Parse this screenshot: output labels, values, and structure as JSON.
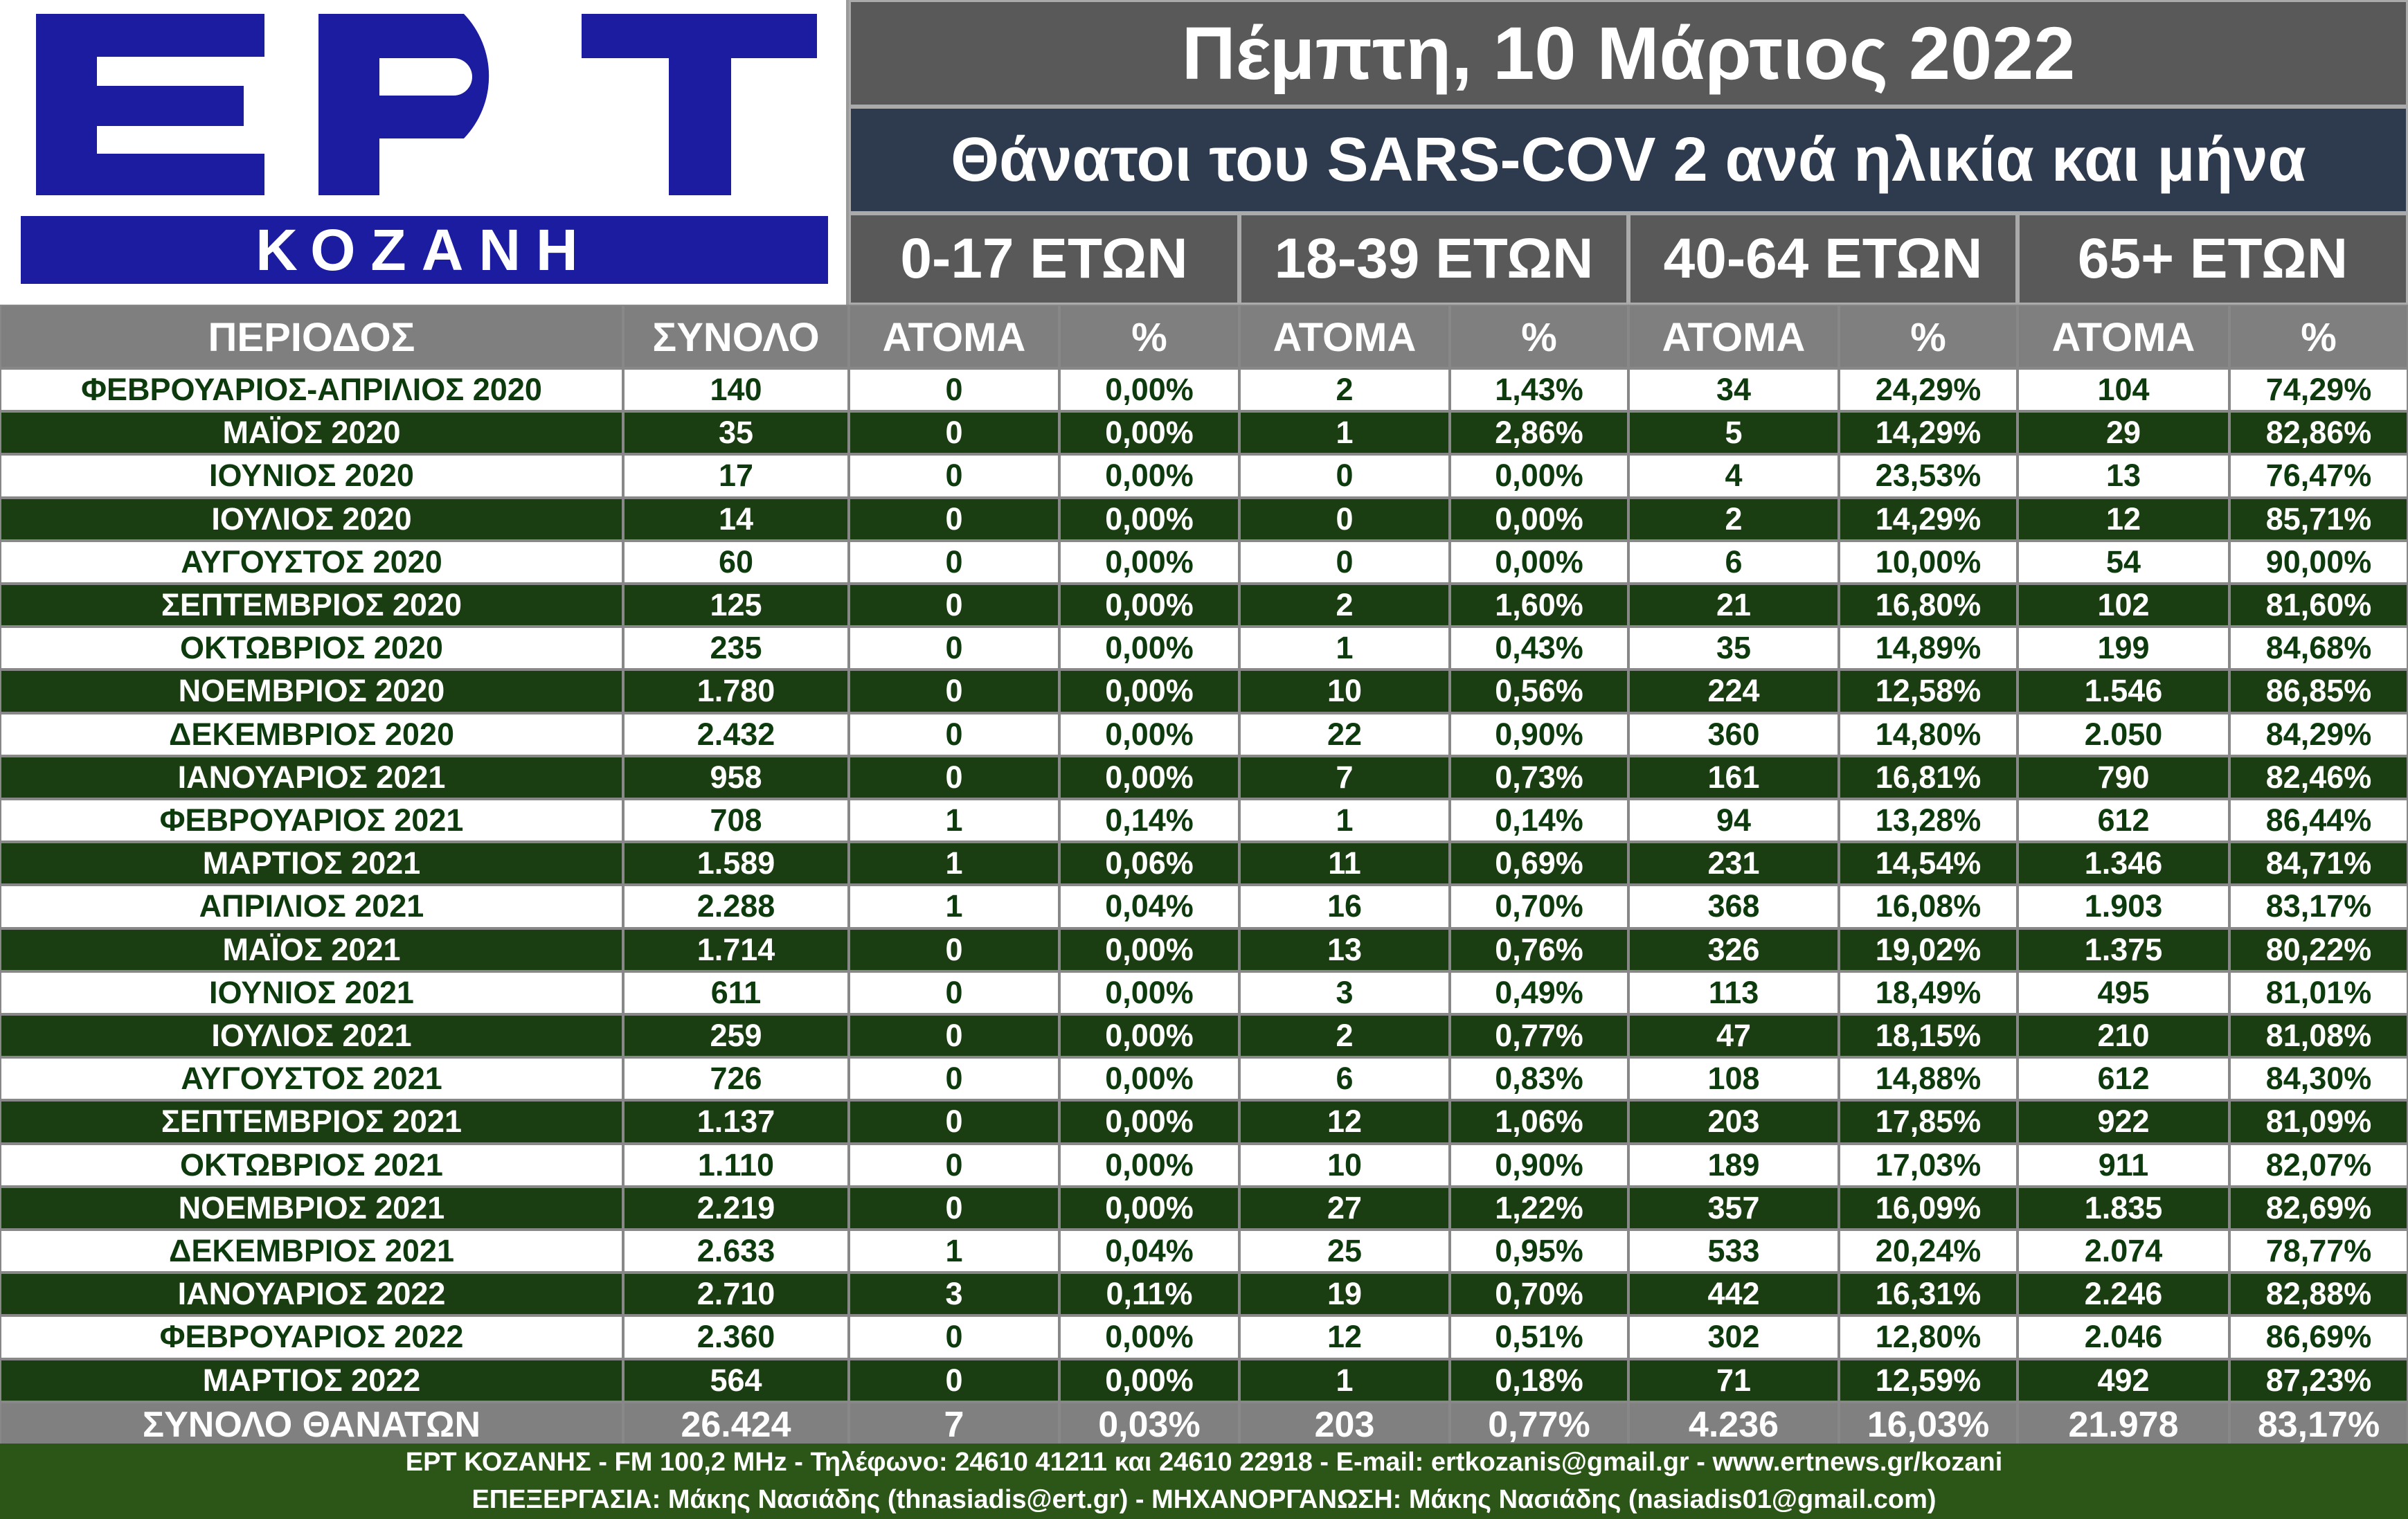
{
  "logo": {
    "brand": "ΕΡΤ",
    "station": "ΚΟΖΑΝΗ",
    "brand_color": "#1c1ca0"
  },
  "header": {
    "date": "Πέμπτη, 10 Μάρτιος 2022",
    "title": "Θάνατοι του SARS-COV 2 ανά ηλικία και μήνα"
  },
  "age_groups": [
    "0-17 ΕΤΩΝ",
    "18-39 ΕΤΩΝ",
    "40-64 ΕΤΩΝ",
    "65+  ΕΤΩΝ"
  ],
  "columns": [
    "ΠΕΡΙΟΔΟΣ",
    "ΣΥΝΟΛΟ",
    "ΑΤΟΜΑ",
    "%",
    "ΑΤΟΜΑ",
    "%",
    "ΑΤΟΜΑ",
    "%",
    "ΑΤΟΜΑ",
    "%"
  ],
  "chart_data": {
    "type": "table",
    "title": "Θάνατοι του SARS-COV 2 ανά ηλικία και μήνα",
    "columns": [
      "ΠΕΡΙΟΔΟΣ",
      "ΣΥΝΟΛΟ",
      "0-17 ΕΤΩΝ ΑΤΟΜΑ",
      "0-17 ΕΤΩΝ %",
      "18-39 ΕΤΩΝ ΑΤΟΜΑ",
      "18-39 ΕΤΩΝ %",
      "40-64 ΕΤΩΝ ΑΤΟΜΑ",
      "40-64 ΕΤΩΝ %",
      "65+ ΕΤΩΝ ΑΤΟΜΑ",
      "65+ ΕΤΩΝ %"
    ],
    "rows": [
      [
        "ΦΕΒΡΟΥΑΡΙΟΣ-ΑΠΡΙΛΙΟΣ 2020",
        "140",
        "0",
        "0,00%",
        "2",
        "1,43%",
        "34",
        "24,29%",
        "104",
        "74,29%"
      ],
      [
        "ΜΑΪΟΣ 2020",
        "35",
        "0",
        "0,00%",
        "1",
        "2,86%",
        "5",
        "14,29%",
        "29",
        "82,86%"
      ],
      [
        "ΙΟΥΝΙΟΣ 2020",
        "17",
        "0",
        "0,00%",
        "0",
        "0,00%",
        "4",
        "23,53%",
        "13",
        "76,47%"
      ],
      [
        "ΙΟΥΛΙΟΣ 2020",
        "14",
        "0",
        "0,00%",
        "0",
        "0,00%",
        "2",
        "14,29%",
        "12",
        "85,71%"
      ],
      [
        "ΑΥΓΟΥΣΤΟΣ 2020",
        "60",
        "0",
        "0,00%",
        "0",
        "0,00%",
        "6",
        "10,00%",
        "54",
        "90,00%"
      ],
      [
        "ΣΕΠΤΕΜΒΡΙΟΣ 2020",
        "125",
        "0",
        "0,00%",
        "2",
        "1,60%",
        "21",
        "16,80%",
        "102",
        "81,60%"
      ],
      [
        "ΟΚΤΩΒΡΙΟΣ 2020",
        "235",
        "0",
        "0,00%",
        "1",
        "0,43%",
        "35",
        "14,89%",
        "199",
        "84,68%"
      ],
      [
        "ΝΟΕΜΒΡΙΟΣ 2020",
        "1.780",
        "0",
        "0,00%",
        "10",
        "0,56%",
        "224",
        "12,58%",
        "1.546",
        "86,85%"
      ],
      [
        "ΔΕΚΕΜΒΡΙΟΣ 2020",
        "2.432",
        "0",
        "0,00%",
        "22",
        "0,90%",
        "360",
        "14,80%",
        "2.050",
        "84,29%"
      ],
      [
        "ΙΑΝΟΥΑΡΙΟΣ 2021",
        "958",
        "0",
        "0,00%",
        "7",
        "0,73%",
        "161",
        "16,81%",
        "790",
        "82,46%"
      ],
      [
        "ΦΕΒΡΟΥΑΡΙΟΣ 2021",
        "708",
        "1",
        "0,14%",
        "1",
        "0,14%",
        "94",
        "13,28%",
        "612",
        "86,44%"
      ],
      [
        "ΜΑΡΤΙΟΣ 2021",
        "1.589",
        "1",
        "0,06%",
        "11",
        "0,69%",
        "231",
        "14,54%",
        "1.346",
        "84,71%"
      ],
      [
        "ΑΠΡΙΛΙΟΣ 2021",
        "2.288",
        "1",
        "0,04%",
        "16",
        "0,70%",
        "368",
        "16,08%",
        "1.903",
        "83,17%"
      ],
      [
        "ΜΑΪΟΣ 2021",
        "1.714",
        "0",
        "0,00%",
        "13",
        "0,76%",
        "326",
        "19,02%",
        "1.375",
        "80,22%"
      ],
      [
        "ΙΟΥΝΙΟΣ 2021",
        "611",
        "0",
        "0,00%",
        "3",
        "0,49%",
        "113",
        "18,49%",
        "495",
        "81,01%"
      ],
      [
        "ΙΟΥΛΙΟΣ 2021",
        "259",
        "0",
        "0,00%",
        "2",
        "0,77%",
        "47",
        "18,15%",
        "210",
        "81,08%"
      ],
      [
        "ΑΥΓΟΥΣΤΟΣ 2021",
        "726",
        "0",
        "0,00%",
        "6",
        "0,83%",
        "108",
        "14,88%",
        "612",
        "84,30%"
      ],
      [
        "ΣΕΠΤΕΜΒΡΙΟΣ 2021",
        "1.137",
        "0",
        "0,00%",
        "12",
        "1,06%",
        "203",
        "17,85%",
        "922",
        "81,09%"
      ],
      [
        "ΟΚΤΩΒΡΙΟΣ 2021",
        "1.110",
        "0",
        "0,00%",
        "10",
        "0,90%",
        "189",
        "17,03%",
        "911",
        "82,07%"
      ],
      [
        "ΝΟΕΜΒΡΙΟΣ 2021",
        "2.219",
        "0",
        "0,00%",
        "27",
        "1,22%",
        "357",
        "16,09%",
        "1.835",
        "82,69%"
      ],
      [
        "ΔΕΚΕΜΒΡΙΟΣ 2021",
        "2.633",
        "1",
        "0,04%",
        "25",
        "0,95%",
        "533",
        "20,24%",
        "2.074",
        "78,77%"
      ],
      [
        "ΙΑΝΟΥΑΡΙΟΣ 2022",
        "2.710",
        "3",
        "0,11%",
        "19",
        "0,70%",
        "442",
        "16,31%",
        "2.246",
        "82,88%"
      ],
      [
        "ΦΕΒΡΟΥΑΡΙΟΣ 2022",
        "2.360",
        "0",
        "0,00%",
        "12",
        "0,51%",
        "302",
        "12,80%",
        "2.046",
        "86,69%"
      ],
      [
        "ΜΑΡΤΙΟΣ 2022",
        "564",
        "0",
        "0,00%",
        "1",
        "0,18%",
        "71",
        "12,59%",
        "492",
        "87,23%"
      ]
    ],
    "total_row": [
      "ΣΥΝΟΛΟ ΘΑΝΑΤΩΝ",
      "26.424",
      "7",
      "0,03%",
      "203",
      "0,77%",
      "4.236",
      "16,03%",
      "21.978",
      "83,17%"
    ]
  },
  "footer": {
    "line1": "ΕΡΤ ΚΟΖΑΝΗΣ - FM 100,2 MHz - Τηλέφωνο:  24610 41211 και 24610 22918 - E-mail: ertkozanis@gmail.gr - www.ertnews.gr/kozani",
    "line2": "ΕΠΕΞΕΡΓΑΣΙΑ: Μάκης Νασιάδης (thnasiadis@ert.gr) - ΜΗΧΑΝΟΡΓΑΝΩΣΗ: Μάκης Νασιάδης (nasiadis01@gmail.com)"
  },
  "colors": {
    "light_row_bg": "#ffffff",
    "light_row_text": "#0d3b0d",
    "dark_row_bg": "#1a3d12",
    "header_bg": "#7f7f7f",
    "title_bg": "#2e3b4e",
    "footer_bg": "#2b5618"
  }
}
